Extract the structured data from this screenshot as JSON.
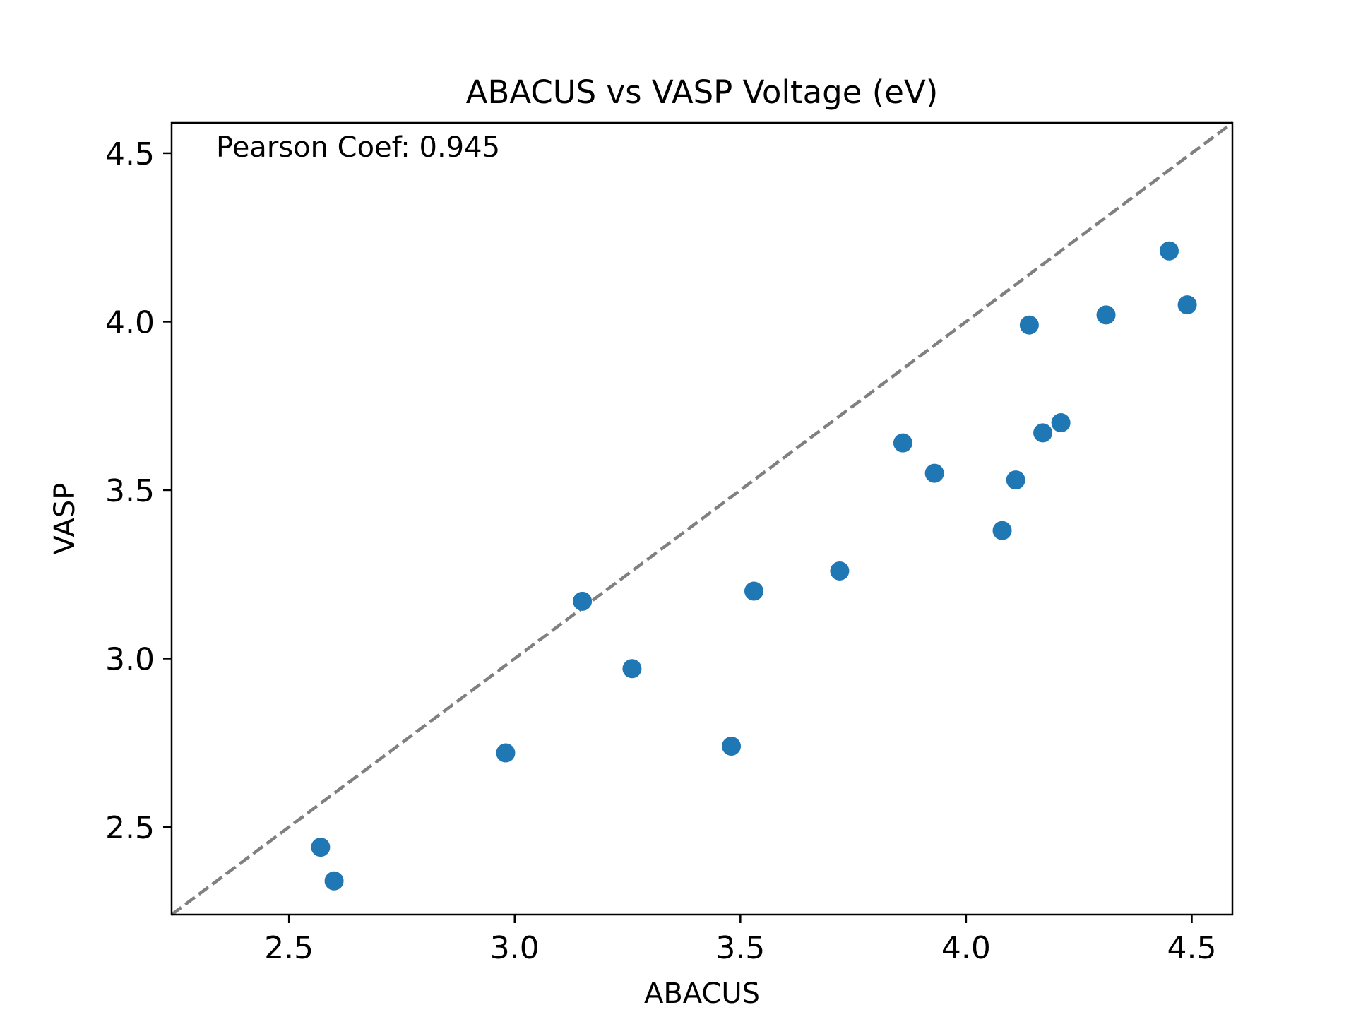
{
  "chart_data": {
    "type": "scatter",
    "title": "ABACUS vs VASP Voltage (eV)",
    "xlabel": "ABACUS",
    "ylabel": "VASP",
    "xlim": [
      2.24,
      4.59
    ],
    "ylim": [
      2.24,
      4.59
    ],
    "xticks": [
      2.5,
      3.0,
      3.5,
      4.0,
      4.5
    ],
    "xtick_labels": [
      "2.5",
      "3.0",
      "3.5",
      "4.0",
      "4.5"
    ],
    "yticks": [
      2.5,
      3.0,
      3.5,
      4.0,
      4.5
    ],
    "ytick_labels": [
      "2.5",
      "3.0",
      "3.5",
      "4.0",
      "4.5"
    ],
    "grid": false,
    "annotation": "Pearson Coef: 0.945",
    "reference_line": {
      "style": "dashed",
      "color": "#808080",
      "from": [
        2.24,
        2.24
      ],
      "to": [
        4.59,
        4.59
      ]
    },
    "marker_color": "#1f77b4",
    "points": [
      {
        "x": 2.57,
        "y": 2.44
      },
      {
        "x": 2.6,
        "y": 2.34
      },
      {
        "x": 2.98,
        "y": 2.72
      },
      {
        "x": 3.15,
        "y": 3.17
      },
      {
        "x": 3.26,
        "y": 2.97
      },
      {
        "x": 3.48,
        "y": 2.74
      },
      {
        "x": 3.53,
        "y": 3.2
      },
      {
        "x": 3.72,
        "y": 3.26
      },
      {
        "x": 3.86,
        "y": 3.64
      },
      {
        "x": 3.93,
        "y": 3.55
      },
      {
        "x": 4.08,
        "y": 3.38
      },
      {
        "x": 4.11,
        "y": 3.53
      },
      {
        "x": 4.14,
        "y": 3.99
      },
      {
        "x": 4.17,
        "y": 3.67
      },
      {
        "x": 4.21,
        "y": 3.7
      },
      {
        "x": 4.31,
        "y": 4.02
      },
      {
        "x": 4.45,
        "y": 4.21
      },
      {
        "x": 4.49,
        "y": 4.05
      }
    ]
  }
}
